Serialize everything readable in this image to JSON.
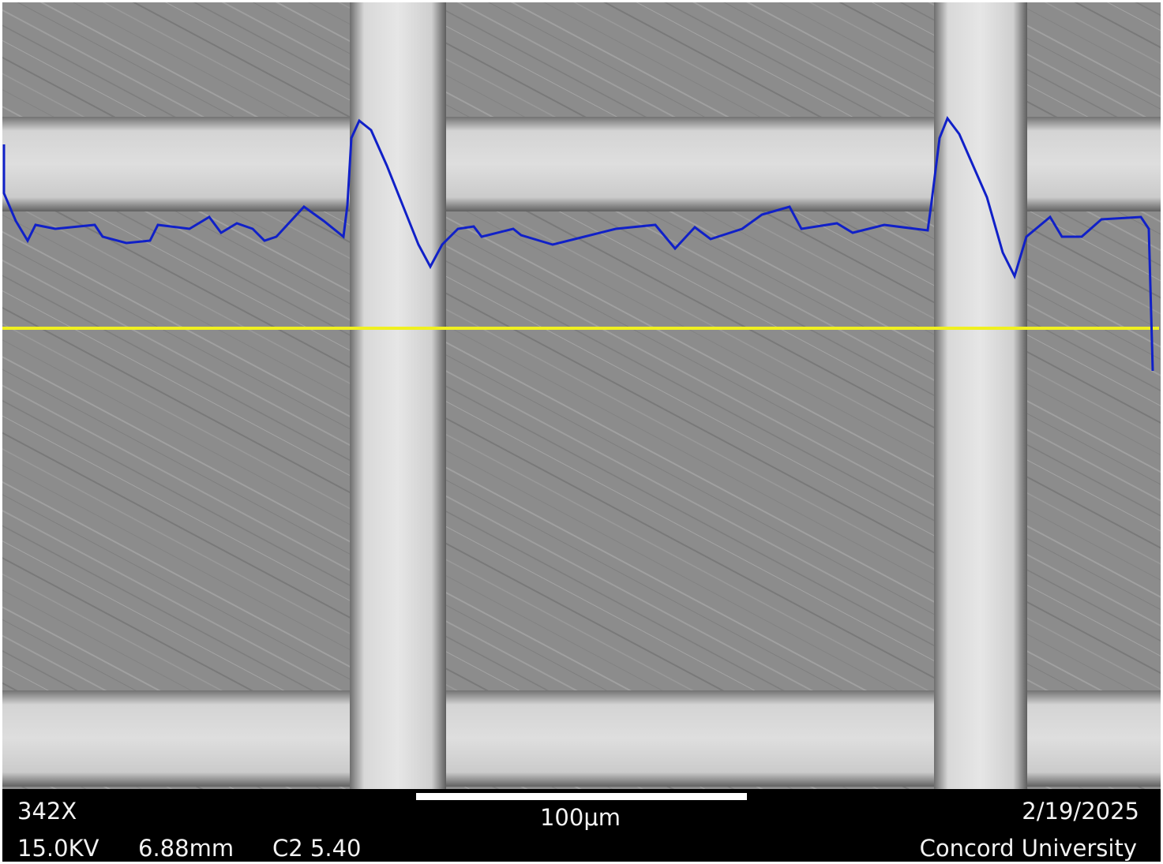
{
  "info_bar": {
    "magnification": "342X",
    "voltage": "15.0KV",
    "working_distance": "6.88mm",
    "condenser": "C2 5.40",
    "scale_bar": "100μm",
    "date": "2/19/2025",
    "institution": "Concord University"
  }
}
